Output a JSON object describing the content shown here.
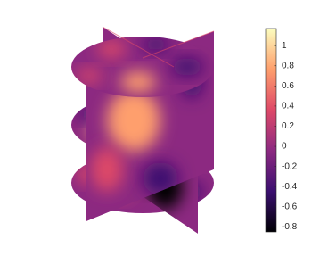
{
  "chart_data": {
    "type": "slice",
    "colormap": [
      "#000004",
      "#3b0f70",
      "#8c2981",
      "#de4968",
      "#fe9f6d",
      "#fcfdbf"
    ],
    "clim": [
      -0.85,
      1.17
    ],
    "cticks": [
      -0.8,
      -0.6,
      -0.4,
      -0.2,
      0,
      0.2,
      0.4,
      0.6,
      0.8,
      1
    ]
  }
}
